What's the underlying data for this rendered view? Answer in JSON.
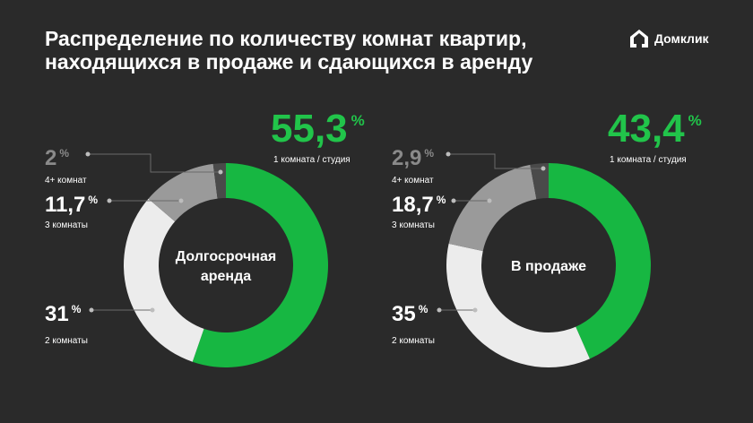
{
  "title": {
    "line1": "Распределение по количеству комнат квартир,",
    "line2": "находящихся в продаже и сдающихся в аренду"
  },
  "brand": {
    "name": "Домклик",
    "icon": "domclick-logo-icon"
  },
  "colors": {
    "background": "#2a2a2a",
    "one_room": "#17b742",
    "two_rooms": "#ececec",
    "three_rooms": "#9a9a9a",
    "four_plus": "#4a4a4a",
    "big_value": "#21c44a",
    "muted_value": "#8a8a8a"
  },
  "chart_data": [
    {
      "type": "pie",
      "center_label": [
        "Долгосрочная",
        "аренда"
      ],
      "slices": [
        {
          "label": "1 комната / студия",
          "value": 55.3,
          "display": "55,3"
        },
        {
          "label": "2 комнаты",
          "value": 31,
          "display": "31"
        },
        {
          "label": "3 комнаты",
          "value": 11.7,
          "display": "11,7"
        },
        {
          "label": "4+ комнат",
          "value": 2,
          "display": "2"
        }
      ],
      "unit": "%"
    },
    {
      "type": "pie",
      "center_label": [
        "В продаже"
      ],
      "slices": [
        {
          "label": "1 комната / студия",
          "value": 43.4,
          "display": "43,4"
        },
        {
          "label": "2 комнаты",
          "value": 35,
          "display": "35"
        },
        {
          "label": "3 комнаты",
          "value": 18.7,
          "display": "18,7"
        },
        {
          "label": "4+ комнат",
          "value": 2.9,
          "display": "2,9"
        }
      ],
      "unit": "%"
    }
  ]
}
